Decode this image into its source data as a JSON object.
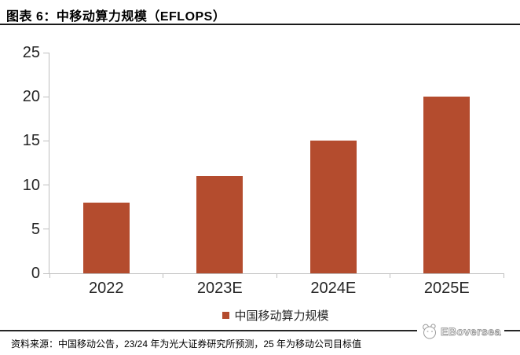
{
  "header": {
    "title": "图表 6：中移动算力规模（EFLOPS）"
  },
  "chart_data": {
    "type": "bar",
    "title": "中移动算力规模（EFLOPS）",
    "categories": [
      "2022",
      "2023E",
      "2024E",
      "2025E"
    ],
    "values": [
      8,
      11,
      15,
      20
    ],
    "xlabel": "",
    "ylabel": "",
    "ylim": [
      0,
      25
    ],
    "ytick_step": 5,
    "yticks": [
      0,
      5,
      10,
      15,
      20,
      25
    ],
    "grid": false,
    "legend_entries": [
      "中国移动算力规模"
    ],
    "legend_position": "bottom-center",
    "bar_color": "#B44C2E",
    "axis_color": "#BFBFBF",
    "tick_label_color": "#262626"
  },
  "legend": {
    "label": "中国移动算力规模"
  },
  "footer": {
    "source_note": "资料来源：中国移动公告，23/24 年为光大证券研究所预测，25 年为移动公司目标值",
    "logo_text": "EBoversea"
  }
}
